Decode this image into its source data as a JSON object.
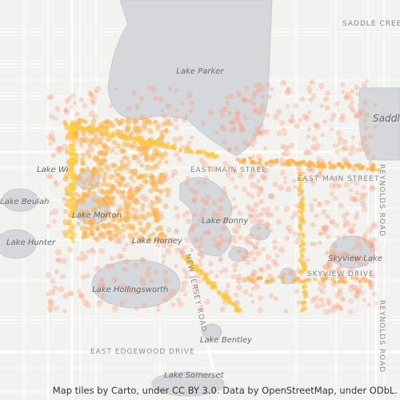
{
  "map": {
    "labels": {
      "saddle_creek": "SADDLE CREEK",
      "lake_parker": "Lake Parker",
      "saddle": "Saddle",
      "east_main_1": "EAST MAIN STREE",
      "east_main_2": "EAST MAIN STREET",
      "reynolds_1": "REYNOLDS ROAD",
      "reynolds_2": "REYNOLDS ROAD",
      "lake_wire": "Lake Wi",
      "lake_beulah": "Lake Beulah",
      "lake_morton": "Lake Morton",
      "lake_hunter": "Lake Hunter",
      "lake_bonny": "Lake Bonny",
      "lake_horney": "Lake Horney",
      "skyview_lake": "Skyview Lake",
      "skyview_drive": "SKYVIEW DRIVE",
      "lake_hollingsworth": "Lake Hollingsworth",
      "new_jersey": "NEW JERSEY ROAD",
      "east_edgewood": "EAST EDGEWOOD DRIVE",
      "lake_bentley": "Lake Bentley",
      "lake_somerset": "Lake Somerset"
    },
    "attribution": "Map tiles by Carto, under CC BY 3.0. Data by OpenStreetMap, under ODbL."
  }
}
